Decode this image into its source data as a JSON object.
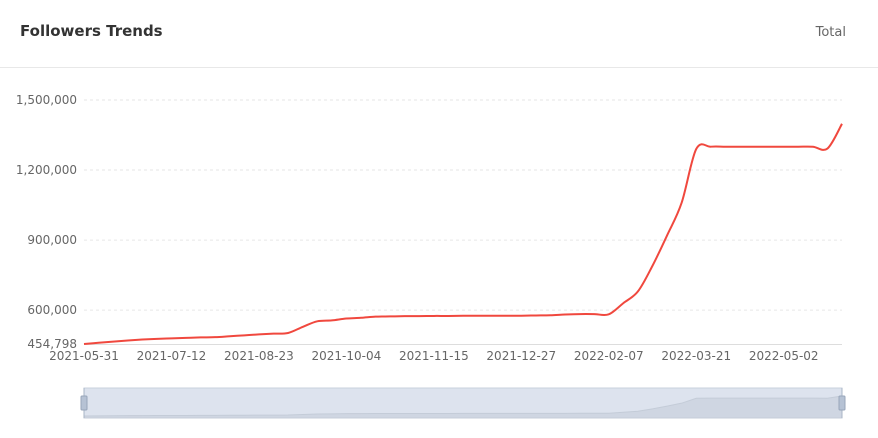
{
  "header": {
    "title": "Followers Trends",
    "total_label": "Total"
  },
  "colors": {
    "line": "#f0483e",
    "slider_bg": "#dde3ee",
    "slider_fill": "#cfd6e2",
    "grid": "#e6e6e6"
  },
  "chart_data": {
    "type": "line",
    "title": "",
    "xlabel": "",
    "ylabel": "",
    "ylim": [
      454798,
      1500000
    ],
    "y_ticks": [
      "454,798",
      "600,000",
      "900,000",
      "1,200,000",
      "1,500,000"
    ],
    "y_tick_values": [
      454798,
      600000,
      900000,
      1200000,
      1500000
    ],
    "x_ticks": [
      "2021-05-31",
      "2021-07-12",
      "2021-08-23",
      "2021-10-04",
      "2021-11-15",
      "2021-12-27",
      "2022-02-07",
      "2022-03-21",
      "2022-05-02"
    ],
    "grid": "horizontal dashed",
    "smooth": true,
    "data_zoom_slider": true,
    "x": [
      "2021-05-31",
      "2021-06-07",
      "2021-06-14",
      "2021-06-21",
      "2021-06-28",
      "2021-07-05",
      "2021-07-12",
      "2021-07-19",
      "2021-07-26",
      "2021-08-02",
      "2021-08-09",
      "2021-08-16",
      "2021-08-23",
      "2021-08-30",
      "2021-09-06",
      "2021-09-13",
      "2021-09-20",
      "2021-09-27",
      "2021-10-04",
      "2021-10-11",
      "2021-10-18",
      "2021-10-25",
      "2021-11-01",
      "2021-11-08",
      "2021-11-15",
      "2021-11-22",
      "2021-11-29",
      "2021-12-06",
      "2021-12-13",
      "2021-12-20",
      "2021-12-27",
      "2022-01-03",
      "2022-01-10",
      "2022-01-17",
      "2022-01-24",
      "2022-01-31",
      "2022-02-07",
      "2022-02-14",
      "2022-02-21",
      "2022-02-28",
      "2022-03-07",
      "2022-03-14",
      "2022-03-21",
      "2022-03-28",
      "2022-04-04",
      "2022-04-11",
      "2022-04-18",
      "2022-04-25",
      "2022-05-02",
      "2022-05-09",
      "2022-05-16",
      "2022-05-23",
      "2022-05-30"
    ],
    "series": [
      {
        "values": [
          454798,
          460000,
          465000,
          470000,
          474000,
          477000,
          479000,
          481000,
          483000,
          484000,
          488000,
          492000,
          496000,
          499000,
          502000,
          528000,
          552000,
          556000,
          564000,
          567000,
          572000,
          573000,
          574000,
          574000,
          575000,
          575000,
          576000,
          576000,
          576000,
          576000,
          576000,
          577000,
          578000,
          581000,
          583000,
          583000,
          582000,
          630000,
          680000,
          790000,
          920000,
          1060000,
          1290000,
          1300000,
          1300000,
          1300000,
          1300000,
          1300000,
          1300000,
          1300000,
          1300000,
          1292000,
          1398000
        ]
      }
    ]
  }
}
